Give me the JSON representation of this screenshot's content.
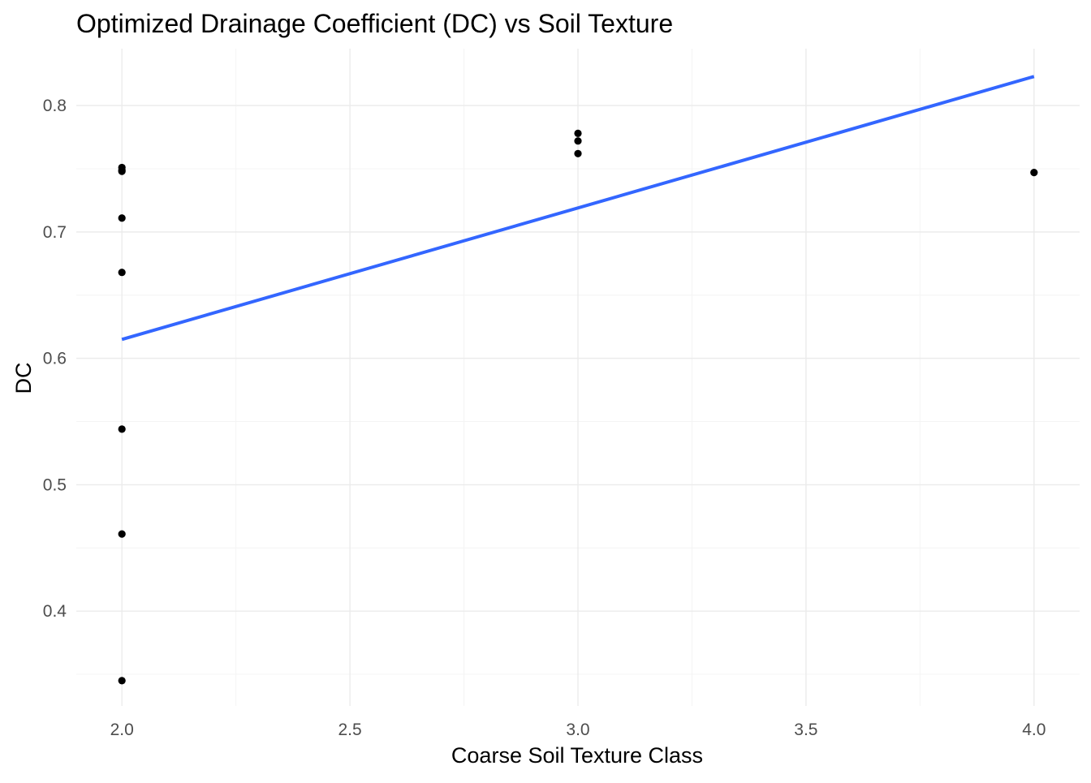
{
  "chart_data": {
    "type": "scatter",
    "title": "Optimized Drainage Coefficient (DC) vs Soil Texture",
    "xlabel": "Coarse Soil Texture Class",
    "ylabel": "DC",
    "xlim": [
      1.9,
      4.1
    ],
    "ylim": [
      0.325,
      0.845
    ],
    "x_ticks": [
      2.0,
      2.5,
      3.0,
      3.5,
      4.0
    ],
    "x_tick_labels": [
      "2.0",
      "2.5",
      "3.0",
      "3.5",
      "4.0"
    ],
    "x_minor_ticks": [
      2.25,
      2.75,
      3.25,
      3.75
    ],
    "y_ticks": [
      0.4,
      0.5,
      0.6,
      0.7,
      0.8
    ],
    "y_tick_labels": [
      "0.4",
      "0.5",
      "0.6",
      "0.7",
      "0.8"
    ],
    "y_minor_ticks": [
      0.35,
      0.45,
      0.55,
      0.65,
      0.75
    ],
    "grid": true,
    "points": [
      {
        "x": 2.0,
        "y": 0.751
      },
      {
        "x": 2.0,
        "y": 0.749
      },
      {
        "x": 2.0,
        "y": 0.748
      },
      {
        "x": 2.0,
        "y": 0.711
      },
      {
        "x": 2.0,
        "y": 0.668
      },
      {
        "x": 2.0,
        "y": 0.544
      },
      {
        "x": 2.0,
        "y": 0.461
      },
      {
        "x": 2.0,
        "y": 0.345
      },
      {
        "x": 3.0,
        "y": 0.778
      },
      {
        "x": 3.0,
        "y": 0.772
      },
      {
        "x": 3.0,
        "y": 0.762
      },
      {
        "x": 4.0,
        "y": 0.747
      }
    ],
    "trend_line": {
      "x": [
        2.0,
        4.0
      ],
      "y": [
        0.615,
        0.823
      ]
    },
    "colors": {
      "points": "#000000",
      "trend_line": "#3366ff",
      "background": "#ffffff"
    }
  }
}
